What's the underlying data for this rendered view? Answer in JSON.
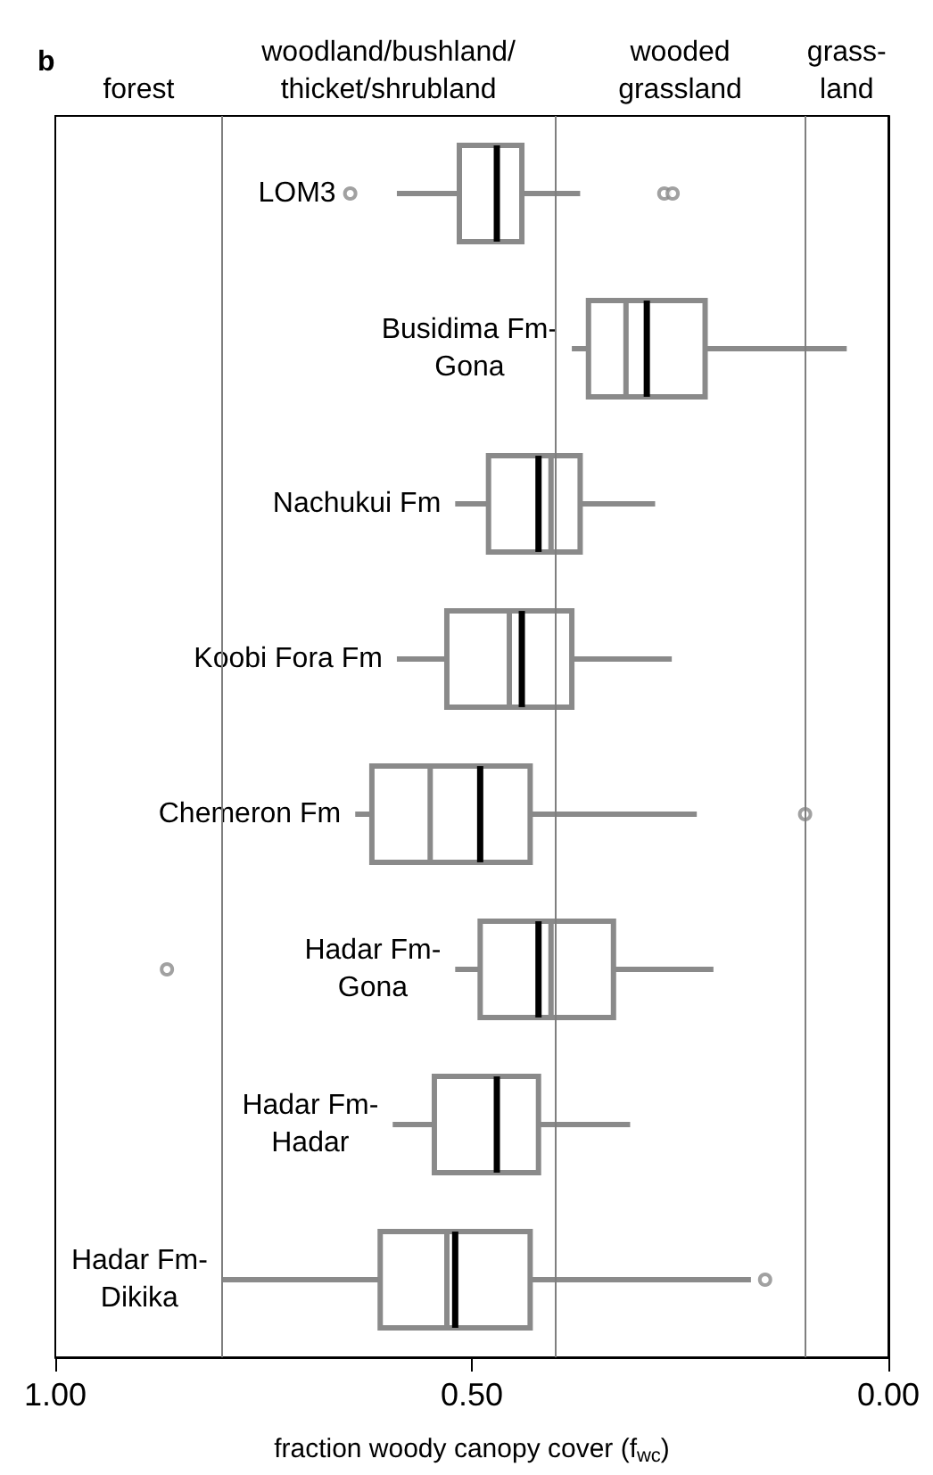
{
  "chart_data": {
    "type": "box",
    "title": "b",
    "orientation": "horizontal",
    "xlabel": "fraction woody canopy cover (f$_{wc}$)",
    "categories": [
      "LOM3",
      "Busidima Fm-Gona",
      "Nachukui Fm",
      "Koobi Fora Fm",
      "Chemeron Fm",
      "Hadar Fm-Gona",
      "Hadar Fm-Hadar",
      "Hadar Fm-Dikika"
    ],
    "xlim": [
      1,
      0
    ],
    "xticks": [
      {
        "value": 1,
        "label": "1.00"
      },
      {
        "value": 0.5,
        "label": "0.50"
      },
      {
        "value": 0,
        "label": "0.00"
      }
    ],
    "series": [
      {
        "color": "#8a8a8a",
        "boxes": [
          {
            "low": 0.37,
            "q1": 0.44,
            "median": 0.47,
            "q3": 0.515,
            "high": 0.59,
            "outliers": [
              0.646,
              0.269,
              0.259
            ]
          },
          {
            "low": 0.05,
            "q1": 0.22,
            "median": 0.29,
            "q3": 0.36,
            "high": 0.38,
            "mean": 0.315
          },
          {
            "low": 0.28,
            "q1": 0.37,
            "median": 0.42,
            "q3": 0.48,
            "high": 0.52,
            "mean": 0.405
          },
          {
            "low": 0.26,
            "q1": 0.38,
            "median": 0.44,
            "q3": 0.53,
            "high": 0.59,
            "mean": 0.455
          },
          {
            "low": 0.23,
            "q1": 0.43,
            "median": 0.49,
            "q3": 0.62,
            "high": 0.64,
            "mean": 0.55,
            "outliers": [
              0.1
            ]
          },
          {
            "low": 0.21,
            "q1": 0.33,
            "median": 0.42,
            "q3": 0.49,
            "high": 0.52,
            "mean": 0.405,
            "outliers": [
              0.866
            ]
          },
          {
            "low": 0.31,
            "q1": 0.42,
            "median": 0.47,
            "q3": 0.545,
            "high": 0.595
          },
          {
            "low": 0.165,
            "q1": 0.43,
            "median": 0.52,
            "q3": 0.61,
            "high": 0.8,
            "mean": 0.53,
            "outliers": [
              0.148
            ]
          }
        ]
      }
    ],
    "ref_lines": [
      {
        "axis": "x",
        "value": 0.8,
        "color": "#7f7f7f"
      },
      {
        "axis": "x",
        "value": 0.4,
        "color": "#7f7f7f"
      },
      {
        "axis": "x",
        "value": 0.1,
        "color": "#7f7f7f"
      }
    ],
    "annotations": [
      "forest",
      "woodland/bushland/\nthicket/shrubland",
      "wooded\ngrassland",
      "grass-\nland"
    ],
    "grid": false
  }
}
